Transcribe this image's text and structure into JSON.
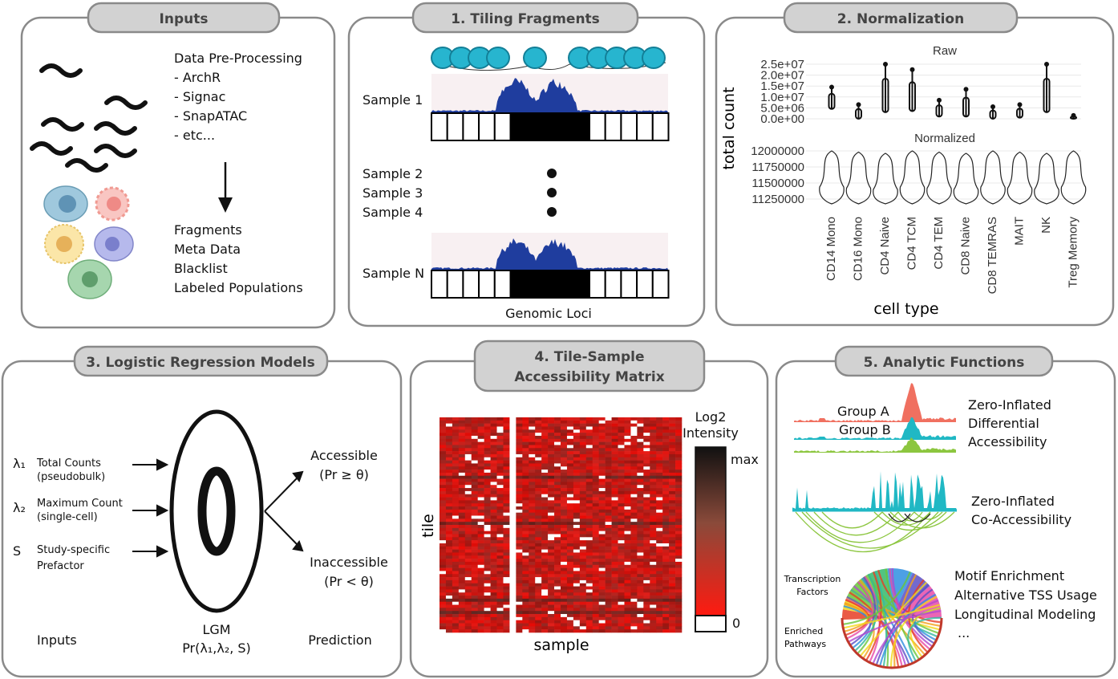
{
  "panels": {
    "inputs": {
      "title": "Inputs",
      "preprocessing_heading": "Data Pre-Processing",
      "preprocessing_items": [
        " - ArchR",
        " - Signac",
        " - SnapATAC",
        " - etc..."
      ],
      "outputs": [
        "Fragments",
        "Meta Data",
        "Blacklist",
        "Labeled Populations"
      ]
    },
    "tiling": {
      "title": "1. Tiling Fragments",
      "samples": [
        "Sample 1",
        "Sample 2",
        "Sample 3",
        "Sample 4",
        "Sample N"
      ],
      "xlabel": "Genomic Loci"
    },
    "normalization": {
      "title": "2. Normalization",
      "raw_title": "Raw",
      "norm_title": "Normalized",
      "ylabel": "total count",
      "xlabel": "cell type",
      "raw_ticks": [
        "2.5e+07",
        "2.0e+07",
        "1.5e+07",
        "1.0e+07",
        "5.0e+06",
        "0.0e+00"
      ],
      "norm_ticks": [
        "12000000",
        "11750000",
        "11500000",
        "11250000"
      ],
      "cell_types": [
        "CD14 Mono",
        "CD16 Mono",
        "CD4 Naive",
        "CD4 TCM",
        "CD4 TEM",
        "CD8 Naive",
        "CD8 TEMRAS",
        "MAIT",
        "NK",
        "Treg Memory"
      ],
      "raw_max": [
        14500000.0,
        6500000.0,
        25000000.0,
        22500000.0,
        8500000.0,
        13500000.0,
        5500000.0,
        6500000.0,
        25000000.0,
        1500000.0
      ],
      "raw_min": [
        4500000.0,
        0,
        3000000.0,
        3500000.0,
        1000000.0,
        1000000.0,
        0,
        500000.0,
        3000000.0,
        0
      ]
    },
    "logistic": {
      "title": "3. Logistic Regression Models",
      "inputs": [
        {
          "symbol": "λ₁",
          "line1": "Total Counts",
          "line2": "(pseudobulk)"
        },
        {
          "symbol": "λ₂",
          "line1": "Maximum Count",
          "line2": "(single-cell)"
        },
        {
          "symbol": "S",
          "line1": "Study-specific",
          "line2": "Prefactor"
        }
      ],
      "accessible": "Accessible",
      "accessible_cond": "(Pr ≥ θ)",
      "inaccessible": "Inaccessible",
      "inaccessible_cond": "(Pr < θ)",
      "footer_inputs": "Inputs",
      "footer_lgm": "LGM",
      "footer_formula": "Pr(λ₁,λ₂, S)",
      "footer_prediction": "Prediction"
    },
    "matrix": {
      "title_line1": "4. Tile-Sample",
      "title_line2": "Accessibility Matrix",
      "ylabel": "tile",
      "xlabel": "sample",
      "legend_title_1": "Log2",
      "legend_title_2": "Intensity",
      "legend_max": "max",
      "legend_min": "0"
    },
    "analytic": {
      "title": "5. Analytic Functions",
      "group_a": "Group A",
      "group_b": "Group B",
      "diff_1": "Zero-Inflated",
      "diff_2": "Differential",
      "diff_3": "Accessibility",
      "coacc_1": "Zero-Inflated",
      "coacc_2": "Co-Accessibility",
      "tf_1": "Transcription",
      "tf_2": "Factors",
      "ep_1": "Enriched",
      "ep_2": "Pathways",
      "functions": [
        "Motif Enrichment",
        "Alternative TSS Usage",
        "Longitudinal Modeling",
        "..."
      ]
    }
  },
  "colors": {
    "signal_blue": "#1f3d9e",
    "nucleosome": "#27b5cf",
    "group_a": "#f07060",
    "group_b": "#20b8c4",
    "green": "#8cc63f",
    "heat_red": "#d42a1c"
  }
}
